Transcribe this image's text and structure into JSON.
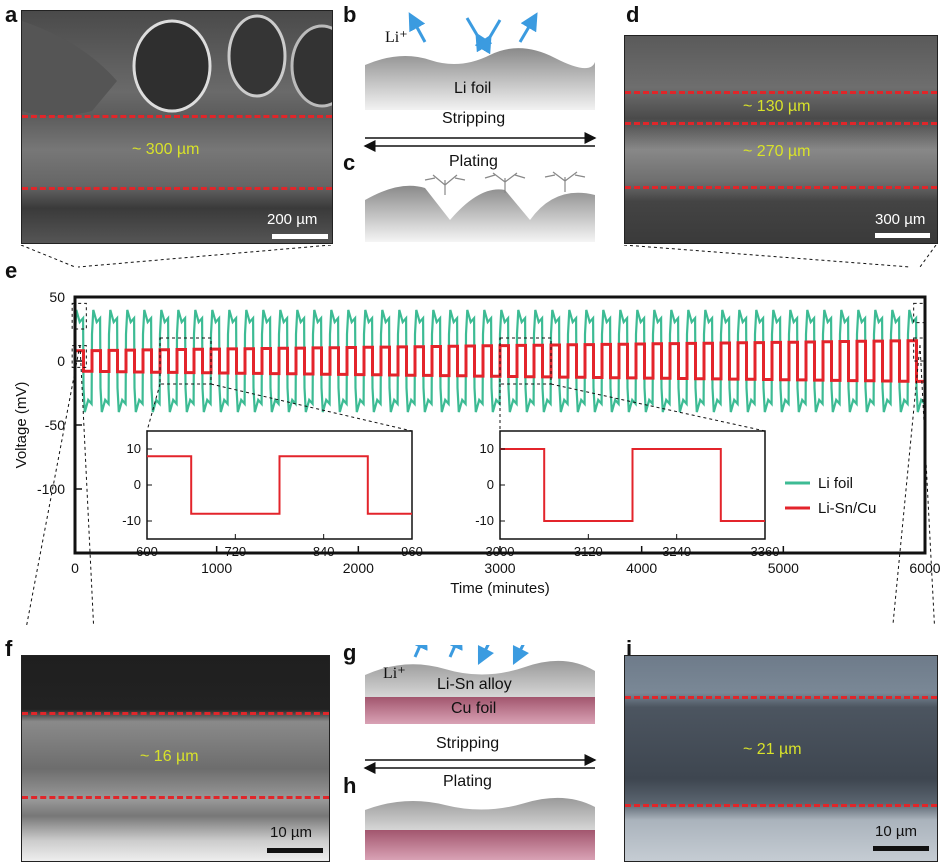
{
  "panels": {
    "a": {
      "letter": "a",
      "measurement": "~ 300 µm",
      "scale": "200 µm"
    },
    "b": {
      "letter": "b",
      "ion": "Li⁺",
      "foil": "Li foil"
    },
    "c": {
      "letter": "c"
    },
    "stripping_top": "Stripping",
    "plating_top": "Plating",
    "d": {
      "letter": "d",
      "measurement_top": "~ 130 µm",
      "measurement_bottom": "~ 270 µm",
      "scale": "300 µm"
    },
    "e": {
      "letter": "e"
    },
    "f": {
      "letter": "f",
      "measurement": "~ 16 µm",
      "scale": "10 µm"
    },
    "g": {
      "letter": "g",
      "ion": "Li⁺",
      "alloy": "Li-Sn alloy",
      "cu": "Cu foil"
    },
    "stripping_bottom": "Stripping",
    "plating_bottom": "Plating",
    "h": {
      "letter": "h"
    },
    "i": {
      "letter": "i",
      "measurement": "~ 21 µm",
      "scale": "10 µm"
    }
  },
  "colors": {
    "li_foil": "#3dbb94",
    "li_sn_cu": "#e3242b",
    "arrow": "#3b9be0",
    "dash": "#e0262a"
  },
  "chart_data": [
    {
      "type": "line",
      "xlabel": "Time (minutes)",
      "ylabel": "Voltage (mV)",
      "xlim": [
        0,
        6000
      ],
      "ylim": [
        -150,
        50
      ],
      "xticks": [
        0,
        1000,
        2000,
        3000,
        4000,
        5000,
        6000
      ],
      "yticks": [
        50,
        0,
        -50,
        -100
      ],
      "legend_position": "right",
      "series": [
        {
          "name": "Li foil",
          "color": "#3dbb94",
          "period_minutes": 120,
          "amplitude_start_mV": 38,
          "amplitude_end_mV": 38,
          "cycles": 50
        },
        {
          "name": "Li-Sn/Cu",
          "color": "#e3242b",
          "period_minutes": 120,
          "amplitude_start_mV": 8,
          "amplitude_end_mV": 16,
          "cycles": 50
        }
      ]
    },
    {
      "type": "line",
      "xlim": [
        600,
        960
      ],
      "ylim": [
        -15,
        15
      ],
      "xticks": [
        600,
        720,
        840,
        960
      ],
      "yticks": [
        10,
        0,
        -10
      ],
      "series": [
        {
          "name": "Li-Sn/Cu",
          "x": [
            600,
            660,
            660,
            780,
            780,
            900,
            900,
            960
          ],
          "y": [
            8,
            8,
            -8,
            -8,
            8,
            8,
            -8,
            -8
          ]
        }
      ]
    },
    {
      "type": "line",
      "xlim": [
        3000,
        3360
      ],
      "ylim": [
        -15,
        15
      ],
      "xticks": [
        3000,
        3120,
        3240,
        3360
      ],
      "yticks": [
        10,
        0,
        -10
      ],
      "series": [
        {
          "name": "Li-Sn/Cu",
          "x": [
            3000,
            3060,
            3060,
            3180,
            3180,
            3300,
            3300,
            3360
          ],
          "y": [
            10,
            10,
            -10,
            -10,
            10,
            10,
            -10,
            -10
          ]
        }
      ]
    }
  ]
}
